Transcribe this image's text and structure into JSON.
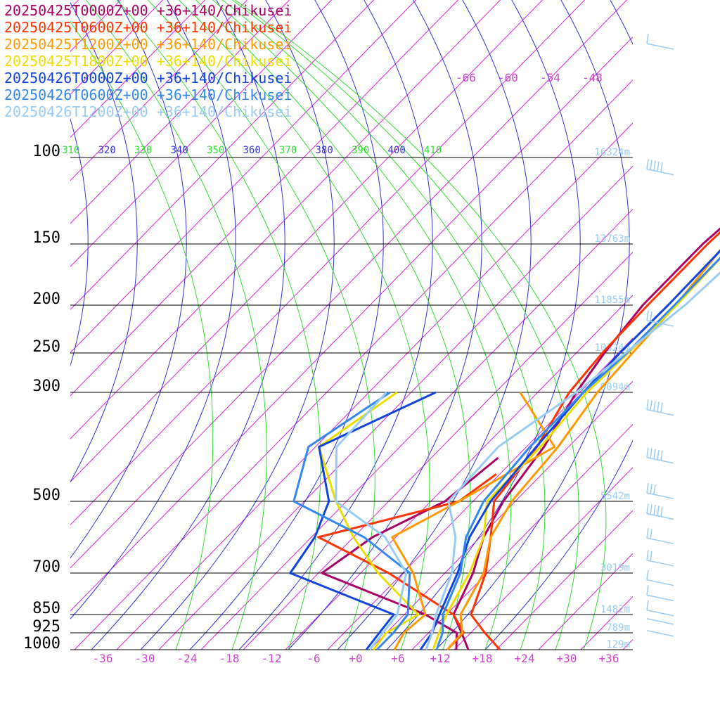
{
  "chart_data": {
    "type": "line",
    "location_label": "+36+140/Chikusei",
    "pressure_levels": [
      100,
      150,
      200,
      250,
      300,
      500,
      700,
      850,
      925,
      1000
    ],
    "x_ticks": [
      "-36",
      "-30",
      "-24",
      "-18",
      "-12",
      "-6",
      "+0",
      "+6",
      "+12",
      "+18",
      "+24",
      "+30",
      "+36"
    ],
    "upper_temp_labels": [
      "-66",
      "-60",
      "-54",
      "-48"
    ],
    "theta_labels": [
      "310",
      "320",
      "330",
      "340",
      "350",
      "360",
      "370",
      "380",
      "390",
      "400",
      "410"
    ],
    "heights": [
      {
        "p": 100,
        "label": "16324m"
      },
      {
        "p": 150,
        "label": "13763m"
      },
      {
        "p": 200,
        "label": "11855m"
      },
      {
        "p": 250,
        "label": "10324m"
      },
      {
        "p": 300,
        "label": "9094m"
      },
      {
        "p": 500,
        "label": "5542m"
      },
      {
        "p": 700,
        "label": "3019m"
      },
      {
        "p": 850,
        "label": "1482m"
      },
      {
        "p": 925,
        "label": "789m"
      },
      {
        "p": 1000,
        "label": "129m"
      }
    ],
    "xlabel": "",
    "ylabel": "",
    "series": [
      {
        "name": "20250425T0000Z+00",
        "color": "#aa0066",
        "temp": [
          [
            0,
            -2.3
          ],
          [
            60,
            -3.8
          ],
          [
            100,
            -5.3
          ],
          [
            150,
            -7.2
          ],
          [
            200,
            -7.2
          ],
          [
            250,
            -6.0
          ],
          [
            300,
            -4.5
          ],
          [
            400,
            -1.5
          ],
          [
            500,
            0.3
          ],
          [
            600,
            2.5
          ],
          [
            700,
            6.0
          ],
          [
            850,
            9.0
          ],
          [
            925,
            12.7
          ],
          [
            1000,
            16.0
          ]
        ],
        "dew": [
          [
            420,
            -6.5
          ],
          [
            500,
            -8.0
          ],
          [
            600,
            -13.3
          ],
          [
            700,
            -15.5
          ],
          [
            850,
            5.0
          ],
          [
            925,
            12.0
          ],
          [
            1000,
            14.3
          ]
        ]
      },
      {
        "name": "20250425T0600Z+00",
        "color": "#ff3300",
        "temp": [
          [
            0,
            -1.6
          ],
          [
            60,
            -4.2
          ],
          [
            100,
            -5.4
          ],
          [
            150,
            -6.5
          ],
          [
            200,
            -6.5
          ],
          [
            250,
            -6.3
          ],
          [
            300,
            -5.5
          ],
          [
            400,
            -2.5
          ],
          [
            500,
            -1.0
          ],
          [
            600,
            3.5
          ],
          [
            700,
            7.8
          ],
          [
            850,
            11.5
          ],
          [
            925,
            16.0
          ],
          [
            1000,
            20.5
          ]
        ],
        "dew": [
          [
            450,
            -4.5
          ],
          [
            500,
            -6.0
          ],
          [
            600,
            -21.0
          ],
          [
            700,
            -6.0
          ],
          [
            850,
            9.0
          ],
          [
            925,
            13.0
          ],
          [
            1000,
            13.0
          ]
        ]
      },
      {
        "name": "20250425T1200Z+00",
        "color": "#ff9900",
        "temp": [
          [
            0,
            -1.8
          ],
          [
            60,
            -3.5
          ],
          [
            100,
            -4.0
          ],
          [
            150,
            -4.0
          ],
          [
            200,
            -2.5
          ],
          [
            250,
            -2.0
          ],
          [
            300,
            -1.5
          ],
          [
            400,
            0.5
          ],
          [
            500,
            1.5
          ],
          [
            600,
            3.5
          ],
          [
            700,
            7.5
          ],
          [
            850,
            10.0
          ],
          [
            925,
            12.8
          ],
          [
            1000,
            13.0
          ]
        ],
        "dew": [
          [
            300,
            -12.5
          ],
          [
            400,
            0.0
          ],
          [
            500,
            -6.0
          ],
          [
            600,
            -10.5
          ],
          [
            700,
            -2.5
          ],
          [
            850,
            5.0
          ],
          [
            925,
            4.5
          ],
          [
            1000,
            5.5
          ]
        ]
      },
      {
        "name": "20250425T1800Z+00",
        "color": "#eedd00",
        "temp": [
          [
            0,
            -1.7
          ],
          [
            60,
            -3.5
          ],
          [
            100,
            -3.8
          ],
          [
            150,
            -2.8
          ],
          [
            200,
            -2.4
          ],
          [
            250,
            -2.6
          ],
          [
            300,
            -3.0
          ],
          [
            400,
            -2.0
          ],
          [
            500,
            -2.0
          ],
          [
            600,
            2.5
          ],
          [
            700,
            5.5
          ],
          [
            850,
            8.0
          ],
          [
            925,
            9.5
          ],
          [
            1000,
            11.0
          ]
        ],
        "dew": [
          [
            300,
            -30.0
          ],
          [
            400,
            -33.5
          ],
          [
            500,
            -23.5
          ],
          [
            600,
            -16.0
          ],
          [
            700,
            -7.5
          ],
          [
            850,
            4.0
          ],
          [
            925,
            2.0
          ],
          [
            1000,
            2.5
          ]
        ]
      },
      {
        "name": "20250426T0000Z+00",
        "color": "#1144dd",
        "temp": [
          [
            0,
            -1.3
          ],
          [
            60,
            -2.7
          ],
          [
            100,
            -3.0
          ],
          [
            150,
            -3.8
          ],
          [
            200,
            -3.6
          ],
          [
            250,
            -3.8
          ],
          [
            300,
            -3.5
          ],
          [
            400,
            -2.6
          ],
          [
            500,
            -1.5
          ],
          [
            600,
            0.5
          ],
          [
            700,
            3.8
          ],
          [
            850,
            7.0
          ],
          [
            925,
            8.5
          ],
          [
            1000,
            9.2
          ]
        ],
        "dew": [
          [
            300,
            -24.5
          ],
          [
            400,
            -33.5
          ],
          [
            500,
            -24.5
          ],
          [
            600,
            -21.5
          ],
          [
            700,
            -20.0
          ],
          [
            850,
            0.5
          ],
          [
            925,
            1.0
          ],
          [
            1000,
            1.5
          ]
        ]
      },
      {
        "name": "20250426T0600Z+00",
        "color": "#3388ee",
        "temp": [
          [
            0,
            -1.0
          ],
          [
            60,
            -2.4
          ],
          [
            100,
            -2.2
          ],
          [
            150,
            -2.8
          ],
          [
            200,
            -2.7
          ],
          [
            250,
            -2.8
          ],
          [
            300,
            -3.5
          ],
          [
            400,
            -3.5
          ],
          [
            500,
            -2.5
          ],
          [
            600,
            0.0
          ],
          [
            700,
            4.2
          ],
          [
            850,
            7.5
          ],
          [
            925,
            10.0
          ],
          [
            1000,
            11.5
          ]
        ],
        "dew": [
          [
            300,
            -31.0
          ],
          [
            400,
            -35.0
          ],
          [
            500,
            -29.5
          ],
          [
            600,
            -14.5
          ],
          [
            700,
            -3.0
          ],
          [
            850,
            2.5
          ],
          [
            925,
            3.0
          ],
          [
            1000,
            3.0
          ]
        ]
      },
      {
        "name": "20250426T1200Z+00",
        "color": "#99ccf5",
        "temp": [
          [
            0,
            -1.8
          ],
          [
            60,
            -2.0
          ],
          [
            100,
            -0.5
          ],
          [
            150,
            -0.3
          ],
          [
            200,
            -1.2
          ],
          [
            250,
            -3.0
          ],
          [
            300,
            -4.5
          ],
          [
            400,
            -8.0
          ],
          [
            500,
            -7.5
          ],
          [
            600,
            -1.5
          ],
          [
            700,
            3.0
          ],
          [
            850,
            6.5
          ],
          [
            925,
            8.5
          ],
          [
            1000,
            10.0
          ]
        ],
        "dew": [
          [
            300,
            -31.5
          ],
          [
            400,
            -31.0
          ],
          [
            500,
            -23.5
          ],
          [
            600,
            -11.5
          ],
          [
            700,
            -3.5
          ],
          [
            850,
            1.0
          ],
          [
            925,
            1.5
          ],
          [
            1000,
            2.0
          ]
        ]
      }
    ],
    "wind_barbs": [
      {
        "p": 45,
        "n": 1
      },
      {
        "p": 110,
        "n": 5
      },
      {
        "p": 222,
        "n": 2
      },
      {
        "p": 342,
        "n": 5
      },
      {
        "p": 430,
        "n": 5
      },
      {
        "p": 495,
        "n": 3
      },
      {
        "p": 550,
        "n": 5
      },
      {
        "p": 618,
        "n": 2
      },
      {
        "p": 680,
        "n": 2
      },
      {
        "p": 745,
        "n": 1
      },
      {
        "p": 800,
        "n": 1
      },
      {
        "p": 855,
        "n": 1
      },
      {
        "p": 890,
        "n": 0
      },
      {
        "p": 940,
        "n": 0
      }
    ],
    "colors": {
      "isotherm": "#dd22dd",
      "dry_adiabat": "#3333dd",
      "moist_adiabat": "#33dd33",
      "isobar": "#000000",
      "tick_text": "#cc44cc",
      "height_text": "#99ccf5",
      "barb": "#99ccf5"
    }
  }
}
